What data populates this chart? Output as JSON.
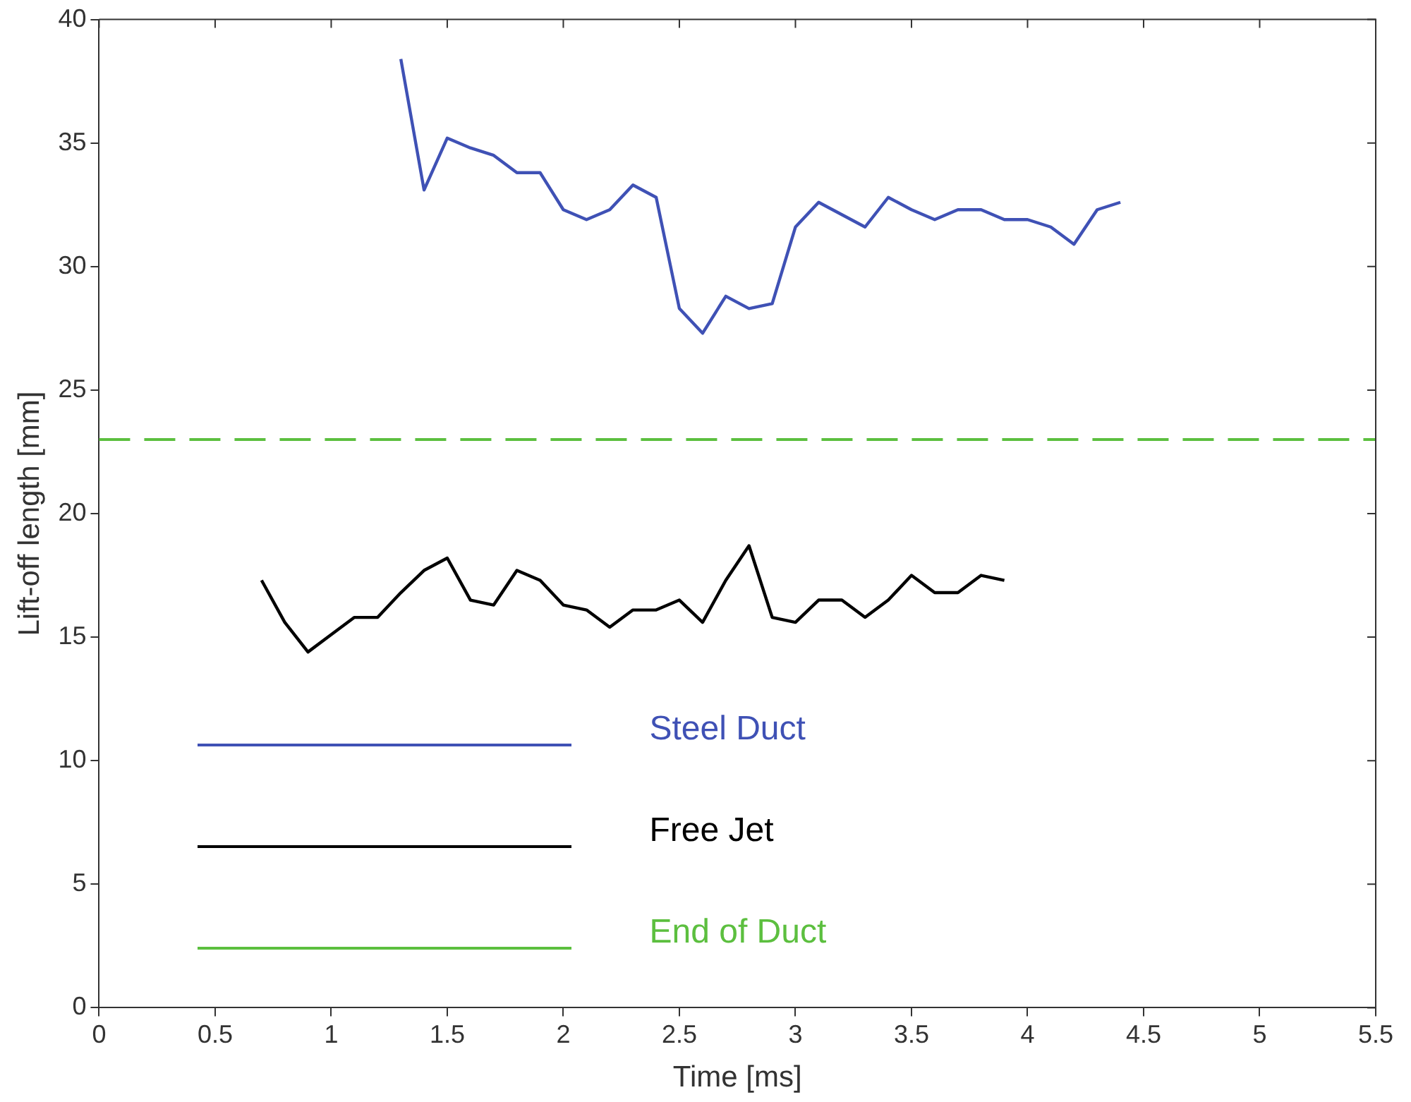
{
  "chart_data": {
    "type": "line",
    "xlabel": "Time [ms]",
    "ylabel": "Lift-off length [mm]",
    "xlim": [
      0,
      5.5
    ],
    "xticks": [
      0,
      0.5,
      1,
      1.5,
      2,
      2.5,
      3,
      3.5,
      4,
      4.5,
      5,
      5.5
    ],
    "ylim": [
      0,
      40
    ],
    "yticks": [
      0,
      5,
      10,
      15,
      20,
      25,
      30,
      35,
      40
    ],
    "grid": false,
    "legend": "bottom left",
    "marker": "none",
    "line_style": "solid",
    "series": [
      {
        "name": "Steel Duct",
        "color": "#3f51b5",
        "x": [
          1.3,
          1.4,
          1.5,
          1.6,
          1.7,
          1.8,
          1.9,
          2.0,
          2.1,
          2.2,
          2.3,
          2.4,
          2.5,
          2.6,
          2.7,
          2.8,
          2.9,
          3.0,
          3.1,
          3.2,
          3.3,
          3.4,
          3.5,
          3.6,
          3.7,
          3.8,
          3.9,
          4.0,
          4.1,
          4.2,
          4.3,
          4.4
        ],
        "values": [
          38.4,
          33.1,
          35.2,
          34.8,
          34.5,
          33.8,
          33.8,
          32.3,
          31.9,
          32.3,
          33.3,
          32.8,
          28.3,
          27.3,
          28.8,
          28.3,
          28.5,
          31.6,
          32.6,
          32.1,
          31.6,
          32.8,
          32.3,
          31.9,
          32.3,
          32.3,
          31.9,
          31.9,
          31.6,
          30.9,
          32.3,
          32.6
        ]
      },
      {
        "name": "Free Jet",
        "color": "#000000",
        "x": [
          0.7,
          0.8,
          0.9,
          1.0,
          1.1,
          1.2,
          1.3,
          1.4,
          1.5,
          1.6,
          1.7,
          1.8,
          1.9,
          2.0,
          2.1,
          2.2,
          2.3,
          2.4,
          2.5,
          2.6,
          2.7,
          2.8,
          2.9,
          3.0,
          3.1,
          3.2,
          3.3,
          3.4,
          3.5,
          3.6,
          3.7,
          3.8,
          3.9
        ],
        "values": [
          17.3,
          15.6,
          14.4,
          15.1,
          15.8,
          15.8,
          16.8,
          17.7,
          18.2,
          16.5,
          16.3,
          17.7,
          17.3,
          16.3,
          16.1,
          15.4,
          16.1,
          16.1,
          16.5,
          15.6,
          17.3,
          18.7,
          15.8,
          15.6,
          16.5,
          16.5,
          15.8,
          16.5,
          17.5,
          16.8,
          16.8,
          17.5,
          17.3
        ]
      }
    ],
    "ref_lines": [
      {
        "axis": "y",
        "value": 23,
        "label": "End of Duct",
        "color": "#5cbf3f",
        "line_style": "dashed"
      }
    ]
  }
}
